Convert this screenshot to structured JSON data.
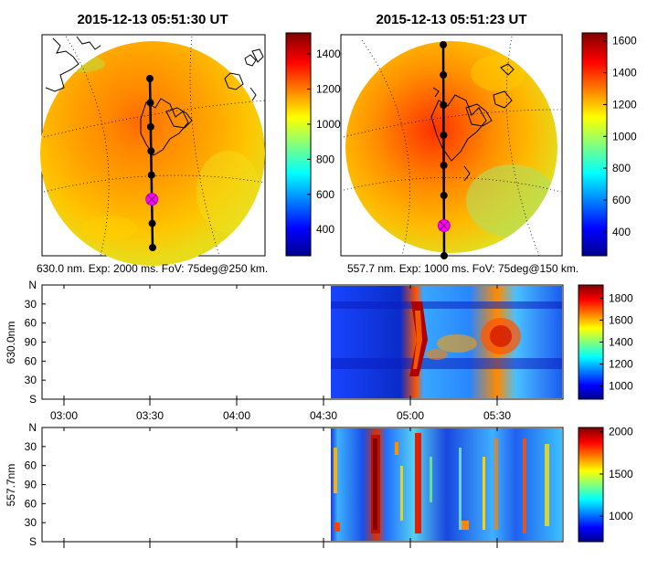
{
  "colors": {
    "colormap": [
      "#00008f",
      "#0000ff",
      "#00ffff",
      "#ffff00",
      "#ff0000",
      "#800000"
    ],
    "track_point": "#000000",
    "current_marker": "#ff00ff",
    "coastline": "#000000"
  },
  "chart_data": [
    {
      "type": "heatmap",
      "subtype": "all-sky-image",
      "title": "2015-12-13 05:51:30 UT",
      "caption": "630.0 nm. Exp: 2000 ms. FoV: 75deg@250 km.",
      "colorbar": {
        "ticks": [
          "1400",
          "1200",
          "1000",
          "800",
          "600",
          "400"
        ],
        "range": [
          250,
          1520
        ]
      },
      "track": {
        "points": 8,
        "current_index": 5
      }
    },
    {
      "type": "heatmap",
      "subtype": "all-sky-image",
      "title": "2015-12-13 05:51:23 UT",
      "caption": "557.7 nm. Exp: 1000 ms. FoV: 75deg@150 km.",
      "colorbar": {
        "ticks": [
          "1600",
          "1400",
          "1200",
          "1000",
          "800",
          "600",
          "400"
        ],
        "range": [
          250,
          1650
        ]
      },
      "track": {
        "points": 8,
        "current_index": 6
      }
    },
    {
      "type": "heatmap",
      "subtype": "keogram",
      "ylabel": "630.0nm",
      "yticks": [
        "N",
        "30",
        "60",
        "90",
        "60",
        "30",
        "S"
      ],
      "xticks": [
        "03:00",
        "03:30",
        "04:00",
        "04:30",
        "05:00",
        "05:30"
      ],
      "data_start": "04:31",
      "data_end": "05:53",
      "colorbar": {
        "ticks": [
          "1800",
          "1600",
          "1400",
          "1200",
          "1000"
        ],
        "range": [
          880,
          1920
        ]
      }
    },
    {
      "type": "heatmap",
      "subtype": "keogram",
      "ylabel": "557.7nm",
      "yticks": [
        "N",
        "30",
        "60",
        "90",
        "60",
        "30",
        "S"
      ],
      "xticks": [],
      "data_start": "04:31",
      "data_end": "05:53",
      "colorbar": {
        "ticks": [
          "2000",
          "1500",
          "1000"
        ],
        "range": [
          700,
          2050
        ]
      }
    }
  ]
}
